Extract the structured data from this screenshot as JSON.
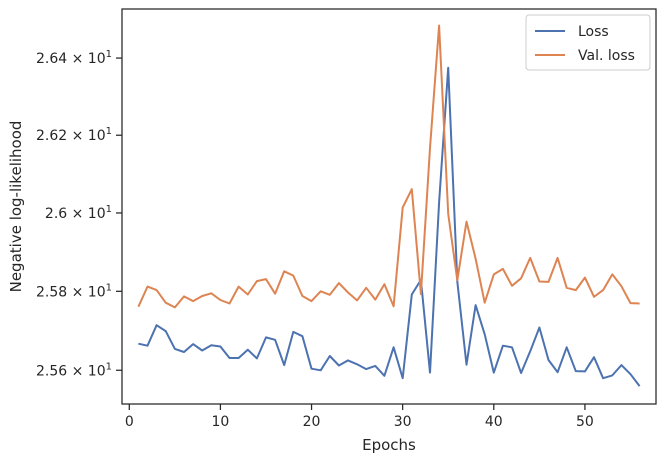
{
  "chart_data": {
    "type": "line",
    "xlabel": "Epochs",
    "ylabel": "Negative log-likelihood",
    "xlim": [
      -0.8,
      57.8
    ],
    "ylim": [
      25.515,
      26.528
    ],
    "yscale": "log",
    "x_ticks": [
      0,
      10,
      20,
      30,
      40,
      50
    ],
    "y_ticks": [
      {
        "value": 25.6,
        "label": "2.56 × 10",
        "exp": "1"
      },
      {
        "value": 25.8,
        "label": "2.58 × 10",
        "exp": "1"
      },
      {
        "value": 26.0,
        "label": "2.6 × 10",
        "exp": "1"
      },
      {
        "value": 26.2,
        "label": "2.62 × 10",
        "exp": "1"
      },
      {
        "value": 26.4,
        "label": "2.64 × 10",
        "exp": "1"
      }
    ],
    "grid": false,
    "legend_position": "top-right",
    "x": [
      1,
      2,
      3,
      4,
      5,
      6,
      7,
      8,
      9,
      10,
      11,
      12,
      13,
      14,
      15,
      16,
      17,
      18,
      19,
      20,
      21,
      22,
      23,
      24,
      25,
      26,
      27,
      28,
      29,
      30,
      31,
      32,
      33,
      34,
      35,
      36,
      37,
      38,
      39,
      40,
      41,
      42,
      43,
      44,
      45,
      46,
      47,
      48,
      49,
      50,
      51,
      52,
      53,
      54,
      55,
      56
    ],
    "series": [
      {
        "name": "Loss",
        "color": "#4c72b0",
        "values": [
          25.667,
          25.662,
          25.714,
          25.699,
          25.654,
          25.646,
          25.666,
          25.65,
          25.663,
          25.66,
          25.631,
          25.631,
          25.652,
          25.63,
          25.683,
          25.677,
          25.613,
          25.697,
          25.686,
          25.604,
          25.6,
          25.636,
          25.612,
          25.625,
          25.615,
          25.603,
          25.611,
          25.586,
          25.658,
          25.58,
          25.792,
          25.829,
          25.594,
          26.027,
          26.375,
          25.825,
          25.614,
          25.765,
          25.691,
          25.594,
          25.662,
          25.658,
          25.593,
          25.648,
          25.708,
          25.626,
          25.595,
          25.658,
          25.598,
          25.597,
          25.633,
          25.58,
          25.587,
          25.613,
          25.59,
          25.56
        ]
      },
      {
        "name": "Val. loss",
        "color": "#dd8452",
        "values": [
          25.761,
          25.812,
          25.803,
          25.771,
          25.759,
          25.787,
          25.775,
          25.788,
          25.795,
          25.778,
          25.769,
          25.812,
          25.792,
          25.826,
          25.831,
          25.794,
          25.851,
          25.84,
          25.788,
          25.775,
          25.8,
          25.791,
          25.821,
          25.797,
          25.777,
          25.809,
          25.779,
          25.818,
          25.762,
          26.014,
          26.061,
          25.793,
          26.167,
          26.485,
          25.998,
          25.828,
          25.978,
          25.883,
          25.771,
          25.843,
          25.857,
          25.814,
          25.833,
          25.885,
          25.825,
          25.824,
          25.885,
          25.809,
          25.803,
          25.835,
          25.786,
          25.803,
          25.843,
          25.813,
          25.77,
          25.769
        ]
      }
    ]
  }
}
